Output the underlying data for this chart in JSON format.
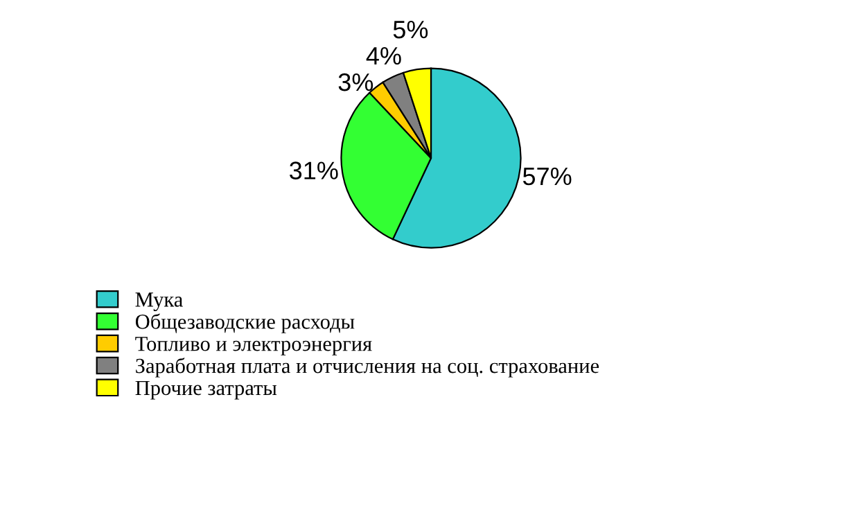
{
  "chart_data": {
    "type": "pie",
    "categories": [
      "Мука",
      "Общезаводские расходы",
      "Топливо и электроэнергия",
      "Заработная плата и отчисления на соц. страхование",
      "Прочие затраты"
    ],
    "values": [
      57,
      31,
      3,
      4,
      5
    ],
    "colors": [
      "#33cccc",
      "#33ff33",
      "#ffcc00",
      "#808080",
      "#ffff00"
    ],
    "value_labels": [
      "57%",
      "31%",
      "3%",
      "4%",
      "5%"
    ],
    "legend": "bottom"
  }
}
